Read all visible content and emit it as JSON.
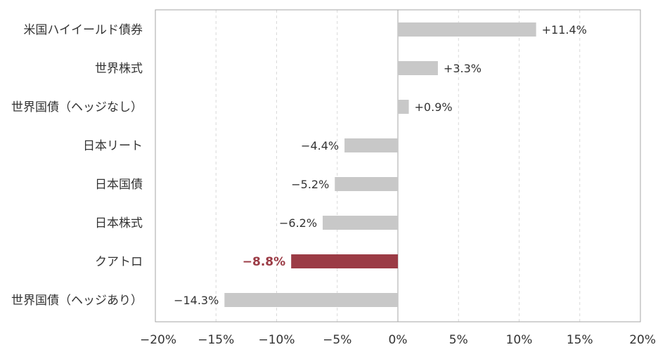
{
  "chart_data": {
    "type": "bar",
    "orientation": "horizontal",
    "categories": [
      "米国ハイイールド債券",
      "世界株式",
      "世界国債（ヘッジなし）",
      "日本リート",
      "日本国債",
      "日本株式",
      "クアトロ",
      "世界国債（ヘッジあり）"
    ],
    "values": [
      11.4,
      3.3,
      0.9,
      -4.4,
      -5.2,
      -6.2,
      -8.8,
      -14.3
    ],
    "data_labels": [
      "+11.4%",
      "+3.3%",
      "+0.9%",
      "−4.4%",
      "−5.2%",
      "−6.2%",
      "−8.8%",
      "−14.3%"
    ],
    "highlight_index": 6,
    "xlim": [
      -20,
      20
    ],
    "xticks": [
      -20,
      -15,
      -10,
      -5,
      0,
      5,
      10,
      15,
      20
    ],
    "xtick_labels": [
      "−20%",
      "−15%",
      "−10%",
      "−5%",
      "0%",
      "5%",
      "10%",
      "15%",
      "20%"
    ],
    "grid": "vertical dashed",
    "title": "",
    "xlabel": "",
    "ylabel": "",
    "colors": {
      "bar": "#c8c8c8",
      "highlight": "#9b3b45",
      "grid": "#d9d9d9",
      "axis": "#a6a6a6"
    }
  }
}
